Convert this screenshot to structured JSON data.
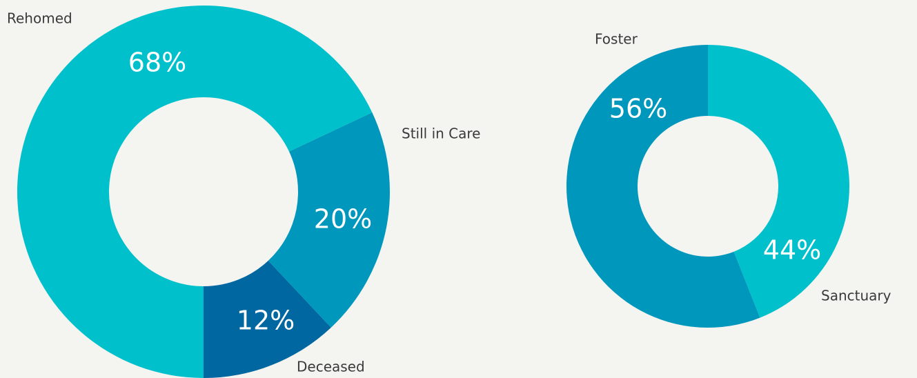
{
  "chart_data": [
    {
      "type": "donut",
      "categories": [
        "Rehomed",
        "Still in Care",
        "Deceased"
      ],
      "values": [
        68,
        20,
        12
      ],
      "value_labels": [
        "68%",
        "20%",
        "12%"
      ],
      "colors": [
        "#00c1cb",
        "#0097bd",
        "#0067a0"
      ]
    },
    {
      "type": "donut",
      "categories": [
        "Sanctuary",
        "Foster"
      ],
      "values": [
        44,
        56
      ],
      "value_labels": [
        "44%",
        "56%"
      ],
      "colors": [
        "#00c1cb",
        "#0097bd"
      ]
    }
  ]
}
